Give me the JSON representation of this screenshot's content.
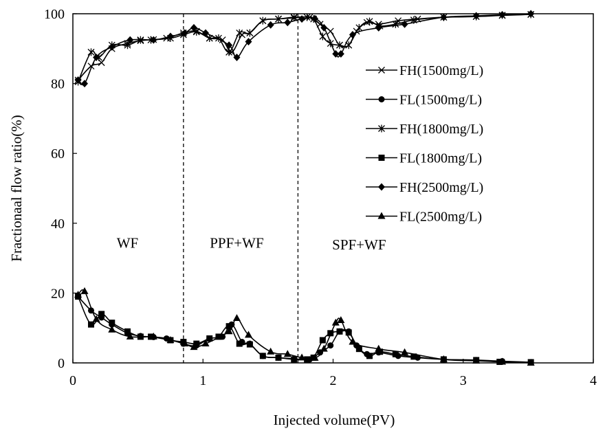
{
  "chart_data": {
    "type": "line",
    "title": "",
    "xlabel": "Injected volume(PV)",
    "ylabel": "Fractionaal flow ratio(%)",
    "xlim": [
      0,
      4
    ],
    "ylim": [
      0,
      100
    ],
    "xticks": [
      0,
      1,
      2,
      3,
      4
    ],
    "yticks": [
      0,
      20,
      40,
      60,
      80,
      100
    ],
    "xtick_labels": [
      "0",
      "1",
      "2",
      "3",
      "4"
    ],
    "ytick_labels": [
      "0",
      "20",
      "40",
      "60",
      "80",
      "100"
    ],
    "grid": false,
    "legend_position": "right",
    "stage_dividers": [
      0.85,
      1.73
    ],
    "annotations": [
      {
        "text": "WF",
        "x": 0.42,
        "y": 33
      },
      {
        "text": "PPF+WF",
        "x": 1.26,
        "y": 33
      },
      {
        "text": "SPF+WF",
        "x": 2.2,
        "y": 32.5
      }
    ],
    "series": [
      {
        "name": "FH(1500mg/L)",
        "marker": "x",
        "points": [
          [
            0.04,
            81
          ],
          [
            0.14,
            85
          ],
          [
            0.22,
            86
          ],
          [
            0.3,
            90
          ],
          [
            0.42,
            91.5
          ],
          [
            0.52,
            92.3
          ],
          [
            0.62,
            92.6
          ],
          [
            0.72,
            93
          ],
          [
            0.85,
            94.5
          ],
          [
            0.95,
            95
          ],
          [
            1.05,
            93
          ],
          [
            1.15,
            92.5
          ],
          [
            1.22,
            89
          ],
          [
            1.3,
            94
          ],
          [
            1.36,
            94.5
          ],
          [
            1.46,
            98
          ],
          [
            1.58,
            98.5
          ],
          [
            1.7,
            98.8
          ],
          [
            1.82,
            99
          ],
          [
            1.9,
            97
          ],
          [
            1.98,
            95
          ],
          [
            2.05,
            91
          ],
          [
            2.12,
            91
          ],
          [
            2.18,
            95
          ],
          [
            2.26,
            97.5
          ],
          [
            2.35,
            97
          ],
          [
            2.5,
            98
          ],
          [
            2.65,
            98.5
          ],
          [
            2.85,
            99
          ],
          [
            3.1,
            99.2
          ],
          [
            3.3,
            99.5
          ],
          [
            3.52,
            99.8
          ]
        ]
      },
      {
        "name": "FL(1500mg/L)",
        "marker": "circle",
        "points": [
          [
            0.04,
            19
          ],
          [
            0.14,
            15
          ],
          [
            0.22,
            13
          ],
          [
            0.3,
            11
          ],
          [
            0.42,
            8.5
          ],
          [
            0.52,
            7.7
          ],
          [
            0.62,
            7.4
          ],
          [
            0.72,
            7
          ],
          [
            0.85,
            5.5
          ],
          [
            0.95,
            5
          ],
          [
            1.05,
            7
          ],
          [
            1.15,
            7.5
          ],
          [
            1.22,
            11
          ],
          [
            1.3,
            6
          ],
          [
            1.36,
            5.5
          ],
          [
            1.46,
            2
          ],
          [
            1.58,
            1.5
          ],
          [
            1.7,
            1.2
          ],
          [
            1.82,
            1
          ],
          [
            1.9,
            3
          ],
          [
            1.98,
            5
          ],
          [
            2.05,
            9
          ],
          [
            2.12,
            9
          ],
          [
            2.18,
            5
          ],
          [
            2.26,
            2.5
          ],
          [
            2.35,
            3
          ],
          [
            2.5,
            2
          ],
          [
            2.65,
            1.5
          ],
          [
            2.85,
            1
          ],
          [
            3.1,
            0.8
          ],
          [
            3.3,
            0.5
          ],
          [
            3.52,
            0.2
          ]
        ]
      },
      {
        "name": "FH(1800mg/L)",
        "marker": "star",
        "points": [
          [
            0.04,
            80.5
          ],
          [
            0.14,
            89
          ],
          [
            0.2,
            87.5
          ],
          [
            0.3,
            91
          ],
          [
            0.42,
            91
          ],
          [
            0.52,
            92.5
          ],
          [
            0.6,
            92.5
          ],
          [
            0.75,
            93
          ],
          [
            0.85,
            94
          ],
          [
            0.95,
            94.8
          ],
          [
            1.05,
            93
          ],
          [
            1.12,
            93
          ],
          [
            1.2,
            89
          ],
          [
            1.28,
            94.5
          ],
          [
            1.36,
            94.5
          ],
          [
            1.46,
            98
          ],
          [
            1.58,
            98.5
          ],
          [
            1.7,
            99
          ],
          [
            1.8,
            99
          ],
          [
            1.85,
            98.5
          ],
          [
            1.92,
            93.5
          ],
          [
            1.98,
            91.5
          ],
          [
            2.05,
            91
          ],
          [
            2.12,
            91
          ],
          [
            2.2,
            96
          ],
          [
            2.28,
            97.8
          ],
          [
            2.36,
            96.5
          ],
          [
            2.48,
            97
          ],
          [
            2.62,
            98.2
          ],
          [
            2.85,
            99
          ],
          [
            3.1,
            99.2
          ],
          [
            3.3,
            99.6
          ],
          [
            3.52,
            99.8
          ]
        ]
      },
      {
        "name": "FL(1800mg/L)",
        "marker": "square",
        "points": [
          [
            0.04,
            19
          ],
          [
            0.14,
            11
          ],
          [
            0.22,
            14
          ],
          [
            0.3,
            11.5
          ],
          [
            0.42,
            9
          ],
          [
            0.52,
            7.5
          ],
          [
            0.6,
            7.5
          ],
          [
            0.75,
            6.5
          ],
          [
            0.85,
            6
          ],
          [
            0.95,
            5.5
          ],
          [
            1.05,
            7
          ],
          [
            1.12,
            7.5
          ],
          [
            1.2,
            10.5
          ],
          [
            1.28,
            5.5
          ],
          [
            1.36,
            5.3
          ],
          [
            1.46,
            2
          ],
          [
            1.58,
            1.5
          ],
          [
            1.7,
            1
          ],
          [
            1.8,
            1
          ],
          [
            1.85,
            1.5
          ],
          [
            1.92,
            6.5
          ],
          [
            1.98,
            8.5
          ],
          [
            2.05,
            9
          ],
          [
            2.12,
            8.7
          ],
          [
            2.2,
            4
          ],
          [
            2.28,
            2
          ],
          [
            2.36,
            3.2
          ],
          [
            2.48,
            2.5
          ],
          [
            2.62,
            1.8
          ],
          [
            2.85,
            1
          ],
          [
            3.1,
            0.8
          ],
          [
            3.28,
            0.3
          ],
          [
            3.52,
            0.2
          ]
        ]
      },
      {
        "name": "FH(2500mg/L)",
        "marker": "diamond",
        "points": [
          [
            0.04,
            81
          ],
          [
            0.09,
            80
          ],
          [
            0.18,
            87.5
          ],
          [
            0.3,
            90.5
          ],
          [
            0.44,
            92.5
          ],
          [
            0.62,
            92.5
          ],
          [
            0.75,
            93.5
          ],
          [
            0.86,
            94.5
          ],
          [
            0.93,
            96
          ],
          [
            1.02,
            94.5
          ],
          [
            1.2,
            91
          ],
          [
            1.26,
            87.5
          ],
          [
            1.35,
            92
          ],
          [
            1.52,
            96.8
          ],
          [
            1.65,
            97.5
          ],
          [
            1.76,
            98.5
          ],
          [
            1.86,
            98.6
          ],
          [
            1.93,
            96
          ],
          [
            2.02,
            88.5
          ],
          [
            2.06,
            88.5
          ],
          [
            2.15,
            94
          ],
          [
            2.35,
            96
          ],
          [
            2.55,
            97
          ],
          [
            2.85,
            99
          ],
          [
            3.1,
            99.4
          ],
          [
            3.3,
            99.7
          ],
          [
            3.52,
            100
          ]
        ]
      },
      {
        "name": "FL(2500mg/L)",
        "marker": "triangle",
        "points": [
          [
            0.04,
            19.5
          ],
          [
            0.09,
            20.5
          ],
          [
            0.18,
            12.5
          ],
          [
            0.3,
            9.5
          ],
          [
            0.44,
            7.5
          ],
          [
            0.62,
            7.5
          ],
          [
            0.75,
            6.5
          ],
          [
            0.86,
            5.5
          ],
          [
            0.93,
            4.5
          ],
          [
            1.02,
            5.5
          ],
          [
            1.2,
            9
          ],
          [
            1.26,
            12.8
          ],
          [
            1.35,
            8
          ],
          [
            1.52,
            3.2
          ],
          [
            1.65,
            2.5
          ],
          [
            1.76,
            1.5
          ],
          [
            1.86,
            1.4
          ],
          [
            1.93,
            4
          ],
          [
            2.02,
            11.5
          ],
          [
            2.06,
            12.2
          ],
          [
            2.15,
            6
          ],
          [
            2.35,
            4
          ],
          [
            2.55,
            3
          ],
          [
            2.85,
            1
          ],
          [
            3.1,
            0.6
          ],
          [
            3.3,
            0.3
          ],
          [
            3.52,
            0
          ]
        ]
      }
    ]
  }
}
